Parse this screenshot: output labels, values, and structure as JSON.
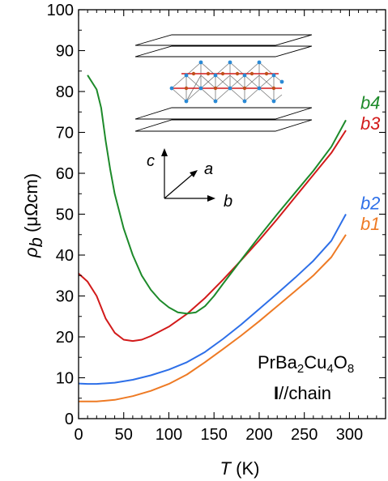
{
  "chart_data": {
    "type": "line",
    "title": "",
    "xlabel": {
      "symbol": "T",
      "unit": " (K)"
    },
    "ylabel": {
      "symbol": "ρ",
      "sub": "b",
      "unit": " (μΩcm)"
    },
    "xlim": [
      0,
      340
    ],
    "ylim": [
      0,
      100
    ],
    "xticks": [
      0,
      50,
      100,
      150,
      200,
      250,
      300
    ],
    "yticks": [
      0,
      10,
      20,
      30,
      40,
      50,
      60,
      70,
      80,
      90,
      100
    ],
    "grid": false,
    "legend": "labels at curve ends (right)",
    "series": [
      {
        "name": "b1",
        "color": "#ee7a24",
        "points": [
          [
            0,
            4.2
          ],
          [
            20,
            4.2
          ],
          [
            40,
            4.6
          ],
          [
            60,
            5.5
          ],
          [
            80,
            6.8
          ],
          [
            100,
            8.5
          ],
          [
            120,
            10.8
          ],
          [
            140,
            13.8
          ],
          [
            160,
            17.0
          ],
          [
            180,
            20.3
          ],
          [
            200,
            23.8
          ],
          [
            220,
            27.5
          ],
          [
            240,
            31.2
          ],
          [
            260,
            35.0
          ],
          [
            280,
            39.5
          ],
          [
            296,
            45.0
          ]
        ]
      },
      {
        "name": "b2",
        "color": "#2d6fe8",
        "points": [
          [
            0,
            8.6
          ],
          [
            10,
            8.5
          ],
          [
            20,
            8.5
          ],
          [
            40,
            8.8
          ],
          [
            60,
            9.5
          ],
          [
            80,
            10.6
          ],
          [
            100,
            12.0
          ],
          [
            120,
            13.8
          ],
          [
            140,
            16.3
          ],
          [
            160,
            19.5
          ],
          [
            180,
            23.0
          ],
          [
            200,
            26.8
          ],
          [
            220,
            30.6
          ],
          [
            240,
            34.5
          ],
          [
            260,
            38.6
          ],
          [
            280,
            43.5
          ],
          [
            296,
            50.0
          ]
        ]
      },
      {
        "name": "b3",
        "color": "#d21a1a",
        "points": [
          [
            0,
            35.5
          ],
          [
            10,
            33.5
          ],
          [
            20,
            30.0
          ],
          [
            30,
            24.5
          ],
          [
            40,
            21.0
          ],
          [
            50,
            19.3
          ],
          [
            60,
            19.0
          ],
          [
            70,
            19.3
          ],
          [
            80,
            20.2
          ],
          [
            100,
            22.5
          ],
          [
            120,
            25.6
          ],
          [
            140,
            29.5
          ],
          [
            160,
            34.0
          ],
          [
            180,
            38.7
          ],
          [
            200,
            43.6
          ],
          [
            220,
            48.8
          ],
          [
            240,
            54.2
          ],
          [
            260,
            59.6
          ],
          [
            280,
            65.0
          ],
          [
            296,
            70.5
          ]
        ]
      },
      {
        "name": "b4",
        "color": "#1d8a2a",
        "points": [
          [
            10,
            84.0
          ],
          [
            20,
            80.5
          ],
          [
            25,
            76.0
          ],
          [
            30,
            68.0
          ],
          [
            35,
            61.0
          ],
          [
            40,
            55.0
          ],
          [
            50,
            46.5
          ],
          [
            60,
            40.0
          ],
          [
            70,
            35.0
          ],
          [
            80,
            31.5
          ],
          [
            90,
            29.0
          ],
          [
            100,
            27.2
          ],
          [
            110,
            26.0
          ],
          [
            120,
            25.7
          ],
          [
            130,
            26.0
          ],
          [
            140,
            27.5
          ],
          [
            150,
            30.0
          ],
          [
            160,
            33.0
          ],
          [
            180,
            38.8
          ],
          [
            200,
            44.5
          ],
          [
            220,
            50.0
          ],
          [
            240,
            55.3
          ],
          [
            260,
            60.6
          ],
          [
            280,
            66.5
          ],
          [
            296,
            73.0
          ]
        ]
      }
    ],
    "annotations": [
      {
        "text_main": "PrBa",
        "sub1": "2",
        "mid": "Cu",
        "sub2": "4",
        "mid2": "O",
        "sub3": "8"
      },
      {
        "bold": "I",
        "rest": "//chain"
      }
    ],
    "inset": {
      "axes": {
        "c": "c",
        "a": "a",
        "b": "b"
      }
    }
  }
}
